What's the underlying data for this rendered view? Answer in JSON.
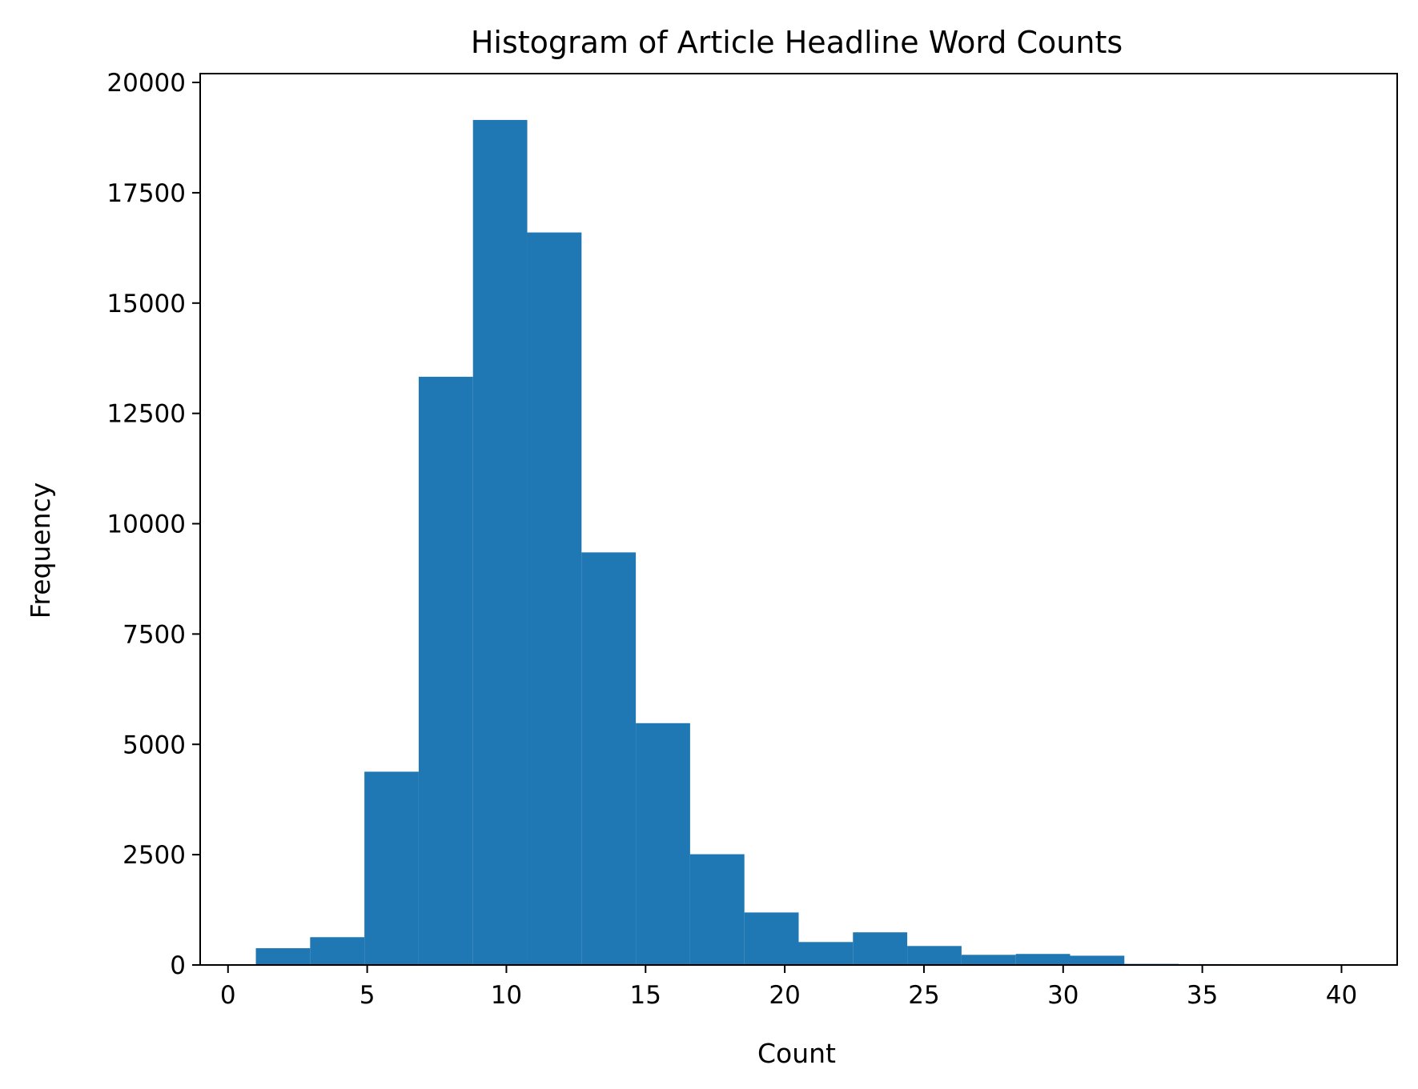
{
  "chart_data": {
    "type": "bar",
    "title": "Histogram of Article Headline Word Counts",
    "xlabel": "Count",
    "ylabel": "Frequency",
    "color": "#1f77b4",
    "grid": false,
    "xlim": [
      -1.0,
      42.0
    ],
    "ylim": [
      0,
      20200
    ],
    "xticks": [
      0,
      5,
      10,
      15,
      20,
      25,
      30,
      35,
      40
    ],
    "xtick_labels": [
      "0",
      "5",
      "10",
      "15",
      "20",
      "25",
      "30",
      "35",
      "40"
    ],
    "yticks": [
      0,
      2500,
      5000,
      7500,
      10000,
      12500,
      15000,
      17500,
      20000
    ],
    "ytick_labels": [
      "0",
      "2500",
      "5000",
      "7500",
      "10000",
      "12500",
      "15000",
      "17500",
      "20000"
    ],
    "bins": [
      {
        "x0": 0.0,
        "x1": 1.0,
        "value": 0
      },
      {
        "x0": 1.0,
        "x1": 2.95,
        "value": 380
      },
      {
        "x0": 2.95,
        "x1": 4.9,
        "value": 630
      },
      {
        "x0": 4.9,
        "x1": 6.85,
        "value": 4380
      },
      {
        "x0": 6.85,
        "x1": 8.8,
        "value": 13330
      },
      {
        "x0": 8.8,
        "x1": 10.75,
        "value": 19150
      },
      {
        "x0": 10.75,
        "x1": 12.7,
        "value": 16600
      },
      {
        "x0": 12.7,
        "x1": 14.65,
        "value": 9350
      },
      {
        "x0": 14.65,
        "x1": 16.6,
        "value": 5480
      },
      {
        "x0": 16.6,
        "x1": 18.55,
        "value": 2510
      },
      {
        "x0": 18.55,
        "x1": 20.5,
        "value": 1190
      },
      {
        "x0": 20.5,
        "x1": 22.45,
        "value": 520
      },
      {
        "x0": 22.45,
        "x1": 24.4,
        "value": 740
      },
      {
        "x0": 24.4,
        "x1": 26.35,
        "value": 430
      },
      {
        "x0": 26.35,
        "x1": 28.3,
        "value": 230
      },
      {
        "x0": 28.3,
        "x1": 30.25,
        "value": 250
      },
      {
        "x0": 30.25,
        "x1": 32.2,
        "value": 210
      },
      {
        "x0": 32.2,
        "x1": 34.15,
        "value": 25
      },
      {
        "x0": 34.15,
        "x1": 36.1,
        "value": 20
      },
      {
        "x0": 36.1,
        "x1": 40.0,
        "value": 0
      }
    ]
  }
}
